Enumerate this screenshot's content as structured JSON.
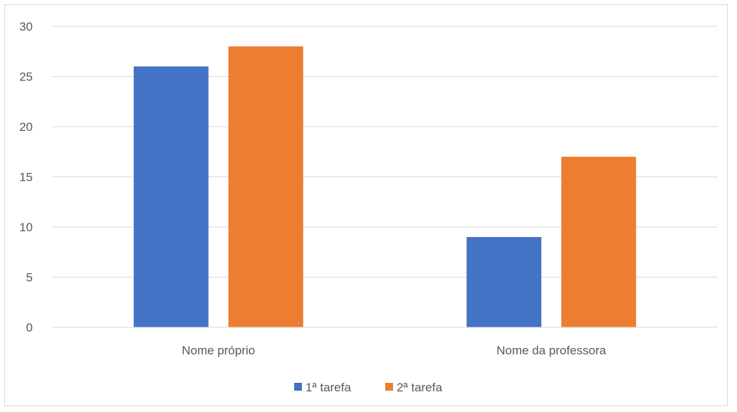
{
  "chart_data": {
    "type": "bar",
    "categories": [
      "Nome próprio",
      "Nome da professora"
    ],
    "series": [
      {
        "name": "1ª tarefa",
        "values": [
          26,
          9
        ],
        "color": "#4472C4"
      },
      {
        "name": "2ª tarefa",
        "values": [
          28,
          17
        ],
        "color": "#ED7D31"
      }
    ],
    "ylim": [
      0,
      30
    ],
    "yticks": [
      0,
      5,
      10,
      15,
      20,
      25,
      30
    ],
    "grid": true,
    "legend": "bottom-center",
    "gridline_color": "#d9d9d9",
    "axis_color": "#d9d9d9"
  }
}
